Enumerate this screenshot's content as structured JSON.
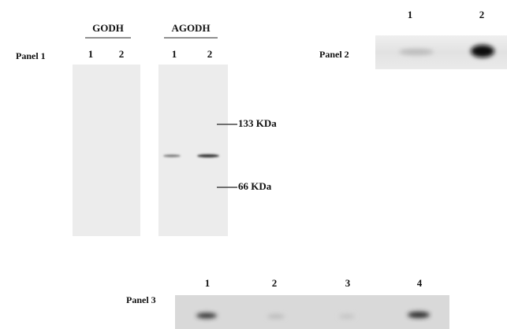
{
  "panel1": {
    "label": "Panel 1",
    "groups": [
      {
        "name": "GODH",
        "lanes": [
          "1",
          "2"
        ]
      },
      {
        "name": "AGODH",
        "lanes": [
          "1",
          "2"
        ]
      }
    ],
    "markers": [
      "133 KDa",
      "66 KDa"
    ]
  },
  "panel2": {
    "label": "Panel 2",
    "lanes": [
      "1",
      "2"
    ]
  },
  "panel3": {
    "label": "Panel 3",
    "lanes": [
      "1",
      "2",
      "3",
      "4"
    ]
  }
}
